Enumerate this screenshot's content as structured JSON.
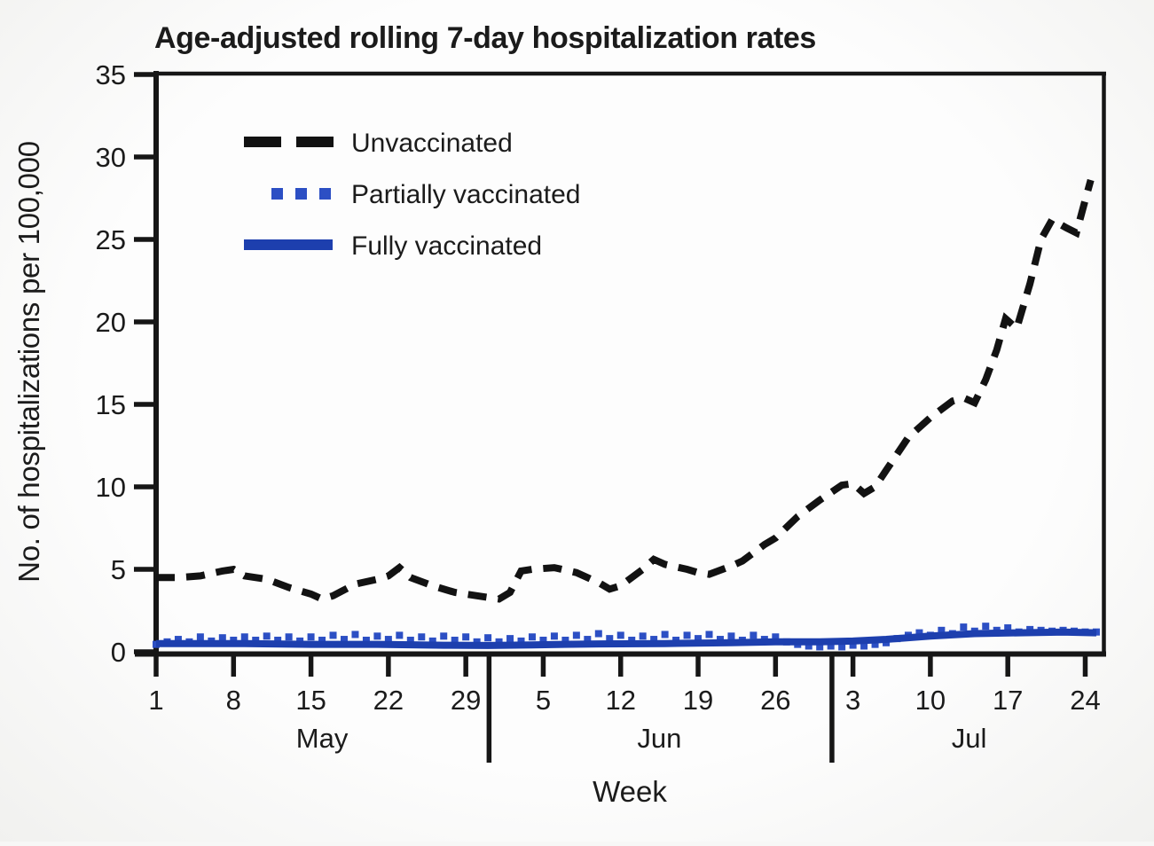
{
  "title": "Age-adjusted rolling 7-day hospitalization rates",
  "y_axis": {
    "label": "No. of hospitalizations per 100,000",
    "ticks": [
      0,
      5,
      10,
      15,
      20,
      25,
      30,
      35
    ]
  },
  "x_axis": {
    "label": "Week",
    "ticks": [
      {
        "label": "1",
        "day": 0
      },
      {
        "label": "8",
        "day": 7
      },
      {
        "label": "15",
        "day": 14
      },
      {
        "label": "22",
        "day": 21
      },
      {
        "label": "29",
        "day": 28
      },
      {
        "label": "5",
        "day": 35
      },
      {
        "label": "12",
        "day": 42
      },
      {
        "label": "19",
        "day": 49
      },
      {
        "label": "26",
        "day": 56
      },
      {
        "label": "3",
        "day": 63
      },
      {
        "label": "10",
        "day": 70
      },
      {
        "label": "17",
        "day": 77
      },
      {
        "label": "24",
        "day": 84
      }
    ],
    "months": [
      {
        "label": "May",
        "center_day": 15
      },
      {
        "label": "Jun",
        "center_day": 45.5
      },
      {
        "label": "Jul",
        "center_day": 73.5
      }
    ],
    "separators_day": [
      30.1,
      61.1
    ]
  },
  "legend": [
    {
      "label": "Unvaccinated",
      "style": "dashed",
      "color": "#121212"
    },
    {
      "label": "Partially vaccinated",
      "style": "dotted",
      "color": "#2c4fc4"
    },
    {
      "label": "Fully vaccinated",
      "style": "solid",
      "color": "#1d3fae"
    }
  ],
  "chart_data": {
    "type": "line",
    "title": "Age-adjusted rolling 7-day hospitalization rates",
    "xlabel": "Week",
    "ylabel": "No. of hospitalizations per 100,000",
    "x_unit": "days since May 1",
    "ylim": [
      0,
      35
    ],
    "grid": false,
    "legend_position": "upper-left-inside",
    "series": [
      {
        "name": "Unvaccinated",
        "style": "dashed",
        "color": "#121212",
        "points": [
          [
            0,
            4.5
          ],
          [
            2,
            4.5
          ],
          [
            4,
            4.6
          ],
          [
            6,
            4.9
          ],
          [
            7,
            5.0
          ],
          [
            8,
            4.6
          ],
          [
            10,
            4.4
          ],
          [
            12,
            3.9
          ],
          [
            14,
            3.5
          ],
          [
            15,
            3.2
          ],
          [
            16,
            3.4
          ],
          [
            18,
            4.1
          ],
          [
            20,
            4.4
          ],
          [
            21,
            4.6
          ],
          [
            22,
            5.1
          ],
          [
            23,
            4.5
          ],
          [
            25,
            4.0
          ],
          [
            27,
            3.6
          ],
          [
            29,
            3.4
          ],
          [
            31,
            3.2
          ],
          [
            32,
            3.6
          ],
          [
            33,
            4.9
          ],
          [
            34,
            5.0
          ],
          [
            36,
            5.1
          ],
          [
            38,
            4.8
          ],
          [
            40,
            4.2
          ],
          [
            41,
            3.8
          ],
          [
            42,
            4.0
          ],
          [
            44,
            5.0
          ],
          [
            45,
            5.6
          ],
          [
            46,
            5.3
          ],
          [
            48,
            5.0
          ],
          [
            49,
            4.8
          ],
          [
            50,
            4.7
          ],
          [
            52,
            5.2
          ],
          [
            53,
            5.5
          ],
          [
            55,
            6.5
          ],
          [
            56,
            6.9
          ],
          [
            58,
            8.2
          ],
          [
            60,
            9.2
          ],
          [
            62,
            10.1
          ],
          [
            63,
            10.2
          ],
          [
            64,
            9.6
          ],
          [
            65,
            10.0
          ],
          [
            66,
            11.0
          ],
          [
            68,
            13.0
          ],
          [
            70,
            14.2
          ],
          [
            72,
            15.2
          ],
          [
            73,
            15.4
          ],
          [
            74,
            15.1
          ],
          [
            75,
            16.5
          ],
          [
            76,
            18.3
          ],
          [
            76.8,
            20.2
          ],
          [
            77.8,
            19.6
          ],
          [
            79,
            22.3
          ],
          [
            80,
            25.0
          ],
          [
            81,
            26.2
          ],
          [
            82.3,
            25.7
          ],
          [
            83.2,
            25.4
          ],
          [
            84,
            27.4
          ],
          [
            84.5,
            28.6
          ]
        ]
      },
      {
        "name": "Partially vaccinated",
        "style": "dotted",
        "color": "#2c4fc4",
        "points": [
          [
            0,
            0.45
          ],
          [
            1,
            0.6
          ],
          [
            2,
            0.75
          ],
          [
            3,
            0.6
          ],
          [
            4,
            0.9
          ],
          [
            5,
            0.65
          ],
          [
            6,
            0.85
          ],
          [
            7,
            0.7
          ],
          [
            8,
            0.9
          ],
          [
            9,
            0.7
          ],
          [
            10,
            0.95
          ],
          [
            11,
            0.7
          ],
          [
            12,
            0.9
          ],
          [
            13,
            0.65
          ],
          [
            14,
            0.9
          ],
          [
            15,
            0.7
          ],
          [
            16,
            1.0
          ],
          [
            17,
            0.75
          ],
          [
            18,
            1.05
          ],
          [
            19,
            0.7
          ],
          [
            20,
            0.95
          ],
          [
            21,
            0.75
          ],
          [
            22,
            1.0
          ],
          [
            23,
            0.7
          ],
          [
            24,
            0.9
          ],
          [
            25,
            0.65
          ],
          [
            26,
            0.95
          ],
          [
            27,
            0.7
          ],
          [
            28,
            0.9
          ],
          [
            29,
            0.6
          ],
          [
            30,
            0.85
          ],
          [
            31,
            0.6
          ],
          [
            32,
            0.8
          ],
          [
            33,
            0.65
          ],
          [
            34,
            0.9
          ],
          [
            35,
            0.7
          ],
          [
            36,
            0.95
          ],
          [
            37,
            0.7
          ],
          [
            38,
            1.0
          ],
          [
            39,
            0.75
          ],
          [
            40,
            1.1
          ],
          [
            41,
            0.8
          ],
          [
            42,
            1.0
          ],
          [
            43,
            0.7
          ],
          [
            44,
            0.95
          ],
          [
            45,
            0.75
          ],
          [
            46,
            1.05
          ],
          [
            47,
            0.7
          ],
          [
            48,
            1.0
          ],
          [
            49,
            0.8
          ],
          [
            50,
            1.05
          ],
          [
            51,
            0.75
          ],
          [
            52,
            0.95
          ],
          [
            53,
            0.7
          ],
          [
            54,
            1.0
          ],
          [
            55,
            0.75
          ],
          [
            56,
            0.9
          ],
          [
            57,
            0.6
          ],
          [
            58,
            0.45
          ],
          [
            59,
            0.35
          ],
          [
            60,
            0.3
          ],
          [
            61,
            0.35
          ],
          [
            62,
            0.3
          ],
          [
            63,
            0.4
          ],
          [
            64,
            0.35
          ],
          [
            65,
            0.45
          ],
          [
            66,
            0.55
          ],
          [
            67,
            0.8
          ],
          [
            68,
            1.0
          ],
          [
            69,
            1.15
          ],
          [
            70,
            1.0
          ],
          [
            71,
            1.3
          ],
          [
            72,
            1.1
          ],
          [
            73,
            1.5
          ],
          [
            74,
            1.25
          ],
          [
            75,
            1.55
          ],
          [
            76,
            1.3
          ],
          [
            77,
            1.45
          ],
          [
            78,
            1.2
          ],
          [
            79,
            1.35
          ],
          [
            80,
            1.3
          ],
          [
            81,
            1.25
          ],
          [
            82,
            1.3
          ],
          [
            83,
            1.25
          ],
          [
            84,
            1.2
          ],
          [
            85,
            1.2
          ]
        ]
      },
      {
        "name": "Fully vaccinated",
        "style": "solid",
        "color": "#1d3fae",
        "points": [
          [
            0,
            0.5
          ],
          [
            4,
            0.5
          ],
          [
            8,
            0.5
          ],
          [
            14,
            0.45
          ],
          [
            20,
            0.45
          ],
          [
            26,
            0.4
          ],
          [
            30,
            0.38
          ],
          [
            34,
            0.42
          ],
          [
            40,
            0.48
          ],
          [
            46,
            0.5
          ],
          [
            52,
            0.55
          ],
          [
            56,
            0.6
          ],
          [
            60,
            0.6
          ],
          [
            63,
            0.65
          ],
          [
            66,
            0.75
          ],
          [
            70,
            0.95
          ],
          [
            74,
            1.1
          ],
          [
            78,
            1.15
          ],
          [
            82,
            1.2
          ],
          [
            85,
            1.15
          ]
        ]
      }
    ]
  }
}
